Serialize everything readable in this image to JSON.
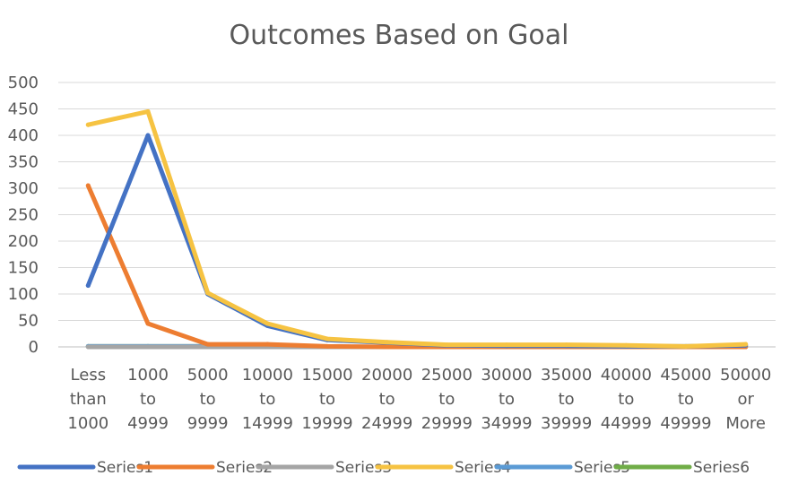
{
  "chart_data": {
    "type": "line",
    "title": "Outcomes Based on Goal",
    "xlabel": "",
    "ylabel": "",
    "ylim": [
      0,
      500
    ],
    "yticks": [
      0,
      50,
      100,
      150,
      200,
      250,
      300,
      350,
      400,
      450,
      500
    ],
    "grid": true,
    "legend_position": "bottom",
    "categories": [
      [
        "Less",
        "than",
        "1000"
      ],
      [
        "1000",
        "to",
        "4999"
      ],
      [
        "5000",
        "to",
        "9999"
      ],
      [
        "10000",
        "to",
        "14999"
      ],
      [
        "15000",
        "to",
        "19999"
      ],
      [
        "20000",
        "to",
        "24999"
      ],
      [
        "25000",
        "to",
        "29999"
      ],
      [
        "30000",
        "to",
        "34999"
      ],
      [
        "35000",
        "to",
        "39999"
      ],
      [
        "40000",
        "to",
        "44999"
      ],
      [
        "45000",
        "to",
        "49999"
      ],
      [
        "50000",
        "or",
        "More"
      ]
    ],
    "series": [
      {
        "name": "Series1",
        "color": "#4472C4",
        "values": [
          116,
          400,
          100,
          40,
          13,
          8,
          3,
          2,
          2,
          1,
          1,
          3
        ]
      },
      {
        "name": "Series2",
        "color": "#ED7D31",
        "values": [
          305,
          44,
          5,
          5,
          1,
          0,
          0,
          0,
          0,
          0,
          0,
          0
        ]
      },
      {
        "name": "Series3",
        "color": "#A5A5A5",
        "values": [
          0,
          0,
          0,
          0,
          0,
          0,
          0,
          0,
          0,
          0,
          0,
          0
        ]
      },
      {
        "name": "Series4",
        "color": "#F6C342",
        "values": [
          420,
          445,
          102,
          44,
          15,
          9,
          4,
          4,
          4,
          3,
          1,
          5
        ]
      },
      {
        "name": "Series5",
        "color": "#5B9BD5",
        "values": [
          1,
          1,
          1,
          1,
          0,
          0,
          0,
          0,
          0,
          0,
          0,
          0
        ]
      },
      {
        "name": "Series6",
        "color": "#70AD47",
        "values": [
          1,
          1,
          1,
          1,
          0,
          0,
          0,
          0,
          0,
          0,
          0,
          0
        ]
      }
    ]
  }
}
